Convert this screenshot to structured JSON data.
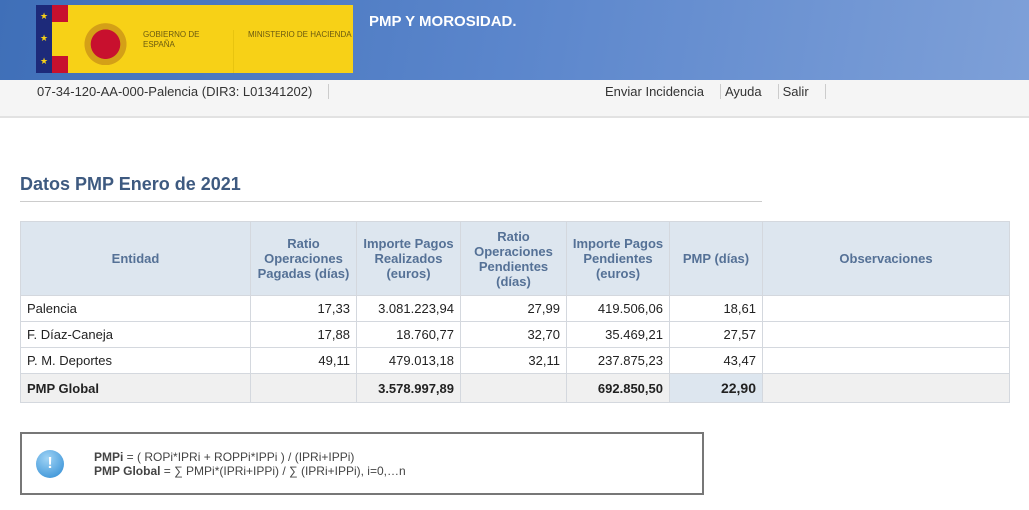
{
  "logo": {
    "gobierno": "GOBIERNO DE ESPAÑA",
    "ministerio": "MINISTERIO DE HACIENDA"
  },
  "app_title": "PMP Y MOROSIDAD.",
  "entity": "07-34-120-AA-000-Palencia (DIR3: L01341202)",
  "links": [
    "Enviar Incidencia",
    "Ayuda",
    "Salir"
  ],
  "page_title": "Datos PMP Enero de 2021",
  "table": {
    "headers": [
      "Entidad",
      "Ratio Operaciones Pagadas (días)",
      "Importe Pagos Realizados (euros)",
      "Ratio Operaciones Pendientes (días)",
      "Importe Pagos Pendientes (euros)",
      "PMP (días)",
      "Observaciones"
    ],
    "rows": [
      [
        "Palencia",
        "17,33",
        "3.081.223,94",
        "27,99",
        "419.506,06",
        "18,61",
        ""
      ],
      [
        "F. Díaz-Caneja",
        "17,88",
        "18.760,77",
        "32,70",
        "35.469,21",
        "27,57",
        ""
      ],
      [
        "P. M. Deportes",
        "49,11",
        "479.013,18",
        "32,11",
        "237.875,23",
        "43,47",
        ""
      ]
    ],
    "total": [
      "PMP Global",
      "",
      "3.578.997,89",
      "",
      "692.850,50",
      "22,90",
      ""
    ]
  },
  "info": {
    "icon": "info-exclamation-icon",
    "line1_label": "PMPi",
    "line1": " = ( ROPi*IPRi + ROPPi*IPPi ) / (IPRi+IPPi)",
    "line2_label": "PMP Global",
    "line2": " = ∑ PMPi*(IPRi+IPPi) / ∑ (IPRi+IPPi), i=0,…n"
  }
}
